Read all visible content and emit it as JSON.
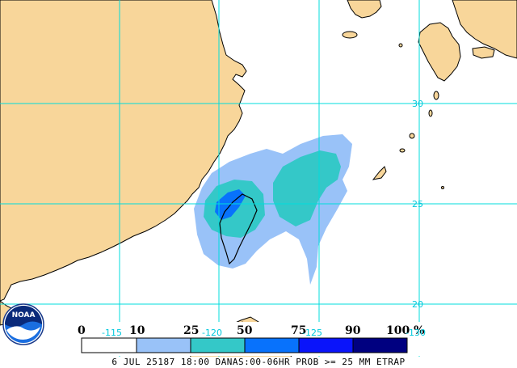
{
  "map": {
    "lat_labels": [
      "30",
      "25",
      "20"
    ],
    "lon_labels": [
      "-115",
      "-120",
      "-125",
      "-130"
    ],
    "colors": {
      "ocean": "#ffffff",
      "land": "#f8d69a",
      "coast": "#000000",
      "grid": "#00dcdc",
      "lake": "#ffffff"
    }
  },
  "legend": {
    "labels": [
      "0",
      "10",
      "25",
      "50",
      "75",
      "90",
      "100 %"
    ],
    "colors": [
      "#ffffff",
      "#99c2f8",
      "#34c8c8",
      "#0872fc",
      "#0a14fa",
      "#000080"
    ]
  },
  "logo": {
    "text": "NOAA",
    "icon": "noaa-logo-icon"
  },
  "footer": {
    "text": "6 JUL 25187 18:00 DANAS:00-06HR PROB >= 25 MM ETRAP"
  }
}
